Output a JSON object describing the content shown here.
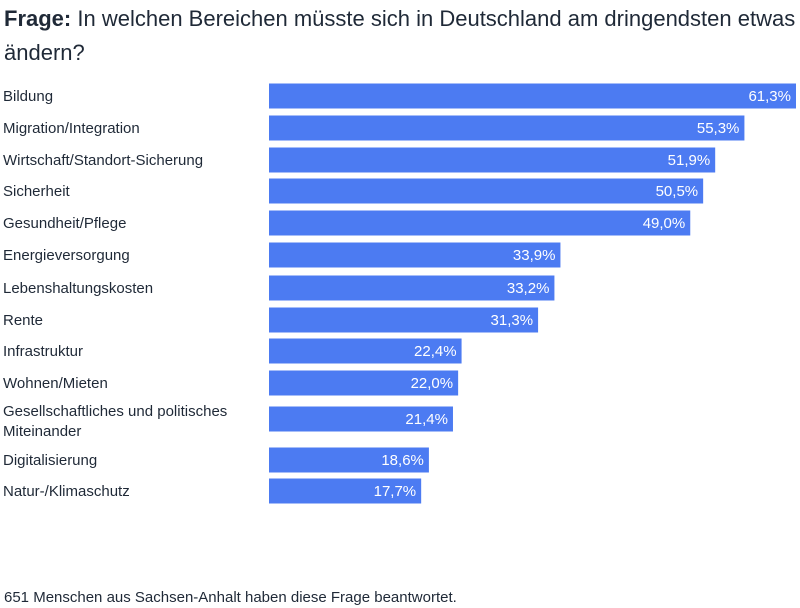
{
  "title": {
    "prefix": "Frage:",
    "text": "In welchen Bereichen müsste sich in Deutschland am dringendsten etwas ändern?"
  },
  "footer": "651 Menschen aus Sachsen-Anhalt haben diese Frage beantwortet.",
  "colors": {
    "bar": "#4c7bf2",
    "bar_label": "#ffffff",
    "text": "#1f2937"
  },
  "chart_data": {
    "type": "bar",
    "orientation": "horizontal",
    "categories": [
      "Bildung",
      "Migration/Integration",
      "Wirtschaft/Standort-Sicherung",
      "Sicherheit",
      "Gesundheit/Pflege",
      "Energieversorgung",
      "Lebenshaltungskosten",
      "Rente",
      "Infrastruktur",
      "Wohnen/Mieten",
      "Gesellschaftliches und politisches Miteinander",
      "Digitalisierung",
      "Natur-/Klimaschutz"
    ],
    "values": [
      61.3,
      55.3,
      51.9,
      50.5,
      49.0,
      33.9,
      33.2,
      31.3,
      22.4,
      22.0,
      21.4,
      18.6,
      17.7
    ],
    "value_labels": [
      "61,3%",
      "55,3%",
      "51,9%",
      "50,5%",
      "49,0%",
      "33,9%",
      "33,2%",
      "31,3%",
      "22,4%",
      "22,0%",
      "21,4%",
      "18,6%",
      "17,7%"
    ],
    "unit": "%",
    "xlim": [
      0,
      61.3
    ],
    "grid": false,
    "legend": "none"
  }
}
